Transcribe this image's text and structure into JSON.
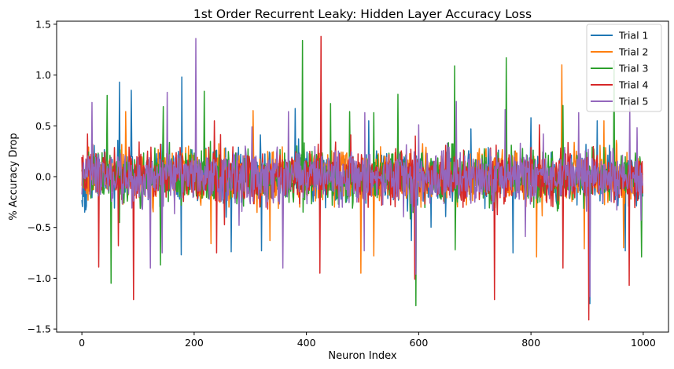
{
  "chart_data": {
    "type": "line",
    "title": "1st Order Recurrent Leaky: Hidden Layer Accuracy Loss",
    "xlabel": "Neuron Index",
    "ylabel": "% Accuracy Drop",
    "xlim": [
      -45,
      1045
    ],
    "ylim": [
      -1.53,
      1.53
    ],
    "x_ticks": [
      {
        "value": 0,
        "label": "0"
      },
      {
        "value": 200,
        "label": "200"
      },
      {
        "value": 400,
        "label": "400"
      },
      {
        "value": 600,
        "label": "600"
      },
      {
        "value": 800,
        "label": "800"
      },
      {
        "value": 1000,
        "label": "1000"
      }
    ],
    "y_ticks": [
      {
        "value": -1.5,
        "label": "−1.5"
      },
      {
        "value": -1.0,
        "label": "−1.0"
      },
      {
        "value": -0.5,
        "label": "−0.5"
      },
      {
        "value": 0.0,
        "label": "0.0"
      },
      {
        "value": 0.5,
        "label": "0.5"
      },
      {
        "value": 1.0,
        "label": "1.0"
      },
      {
        "value": 1.5,
        "label": "1.5"
      }
    ],
    "grid": false,
    "legend_position": "top-right",
    "x_range": [
      0,
      999
    ],
    "series": [
      {
        "name": "Trial 1",
        "color": "#1f77b4",
        "peaks": [
          [
            67,
            0.93
          ],
          [
            88,
            0.85
          ],
          [
            178,
            0.98
          ],
          [
            380,
            0.67
          ],
          [
            511,
            0.55
          ],
          [
            693,
            0.47
          ],
          [
            800,
            0.58
          ],
          [
            918,
            0.55
          ],
          [
            5,
            -0.35
          ],
          [
            177,
            -0.77
          ],
          [
            266,
            -0.74
          ],
          [
            320,
            -0.73
          ],
          [
            587,
            -0.63
          ],
          [
            768,
            -0.75
          ],
          [
            905,
            -1.25
          ],
          [
            968,
            -0.73
          ]
        ]
      },
      {
        "name": "Trial 2",
        "color": "#ff7f0e",
        "peaks": [
          [
            78,
            0.64
          ],
          [
            305,
            0.65
          ],
          [
            660,
            0.32
          ],
          [
            855,
            1.1
          ],
          [
            930,
            0.55
          ],
          [
            230,
            -0.66
          ],
          [
            335,
            -0.63
          ],
          [
            497,
            -0.95
          ],
          [
            520,
            -0.78
          ],
          [
            810,
            -0.79
          ],
          [
            895,
            -0.71
          ],
          [
            965,
            -0.7
          ]
        ]
      },
      {
        "name": "Trial 3",
        "color": "#2ca02c",
        "peaks": [
          [
            45,
            0.8
          ],
          [
            145,
            0.69
          ],
          [
            218,
            0.84
          ],
          [
            393,
            1.34
          ],
          [
            443,
            0.72
          ],
          [
            477,
            0.64
          ],
          [
            520,
            0.63
          ],
          [
            563,
            0.81
          ],
          [
            664,
            1.09
          ],
          [
            756,
            1.17
          ],
          [
            857,
            0.7
          ],
          [
            948,
            1.14
          ],
          [
            52,
            -1.05
          ],
          [
            140,
            -0.87
          ],
          [
            394,
            -0.35
          ],
          [
            595,
            -1.27
          ],
          [
            665,
            -0.72
          ],
          [
            997,
            -0.79
          ]
        ]
      },
      {
        "name": "Trial 4",
        "color": "#d62728",
        "peaks": [
          [
            10,
            0.42
          ],
          [
            236,
            0.55
          ],
          [
            426,
            1.38
          ],
          [
            594,
            0.4
          ],
          [
            815,
            0.51
          ],
          [
            1000,
            0.28
          ],
          [
            30,
            -0.89
          ],
          [
            65,
            -0.68
          ],
          [
            92,
            -1.21
          ],
          [
            240,
            -0.75
          ],
          [
            424,
            -0.95
          ],
          [
            593,
            -1.01
          ],
          [
            735,
            -1.21
          ],
          [
            857,
            -0.9
          ],
          [
            903,
            -1.41
          ],
          [
            975,
            -1.07
          ]
        ]
      },
      {
        "name": "Trial 5",
        "color": "#9467bd",
        "peaks": [
          [
            18,
            0.73
          ],
          [
            152,
            0.83
          ],
          [
            203,
            1.36
          ],
          [
            303,
            0.49
          ],
          [
            368,
            0.64
          ],
          [
            504,
            0.63
          ],
          [
            600,
            0.51
          ],
          [
            667,
            0.74
          ],
          [
            754,
            0.66
          ],
          [
            822,
            0.42
          ],
          [
            885,
            0.63
          ],
          [
            976,
            0.71
          ],
          [
            122,
            -0.9
          ],
          [
            143,
            -0.75
          ],
          [
            280,
            -0.48
          ],
          [
            358,
            -0.9
          ],
          [
            503,
            -0.73
          ],
          [
            595,
            -0.96
          ],
          [
            790,
            -0.59
          ],
          [
            905,
            -1.18
          ],
          [
            996,
            -0.43
          ]
        ]
      }
    ]
  }
}
